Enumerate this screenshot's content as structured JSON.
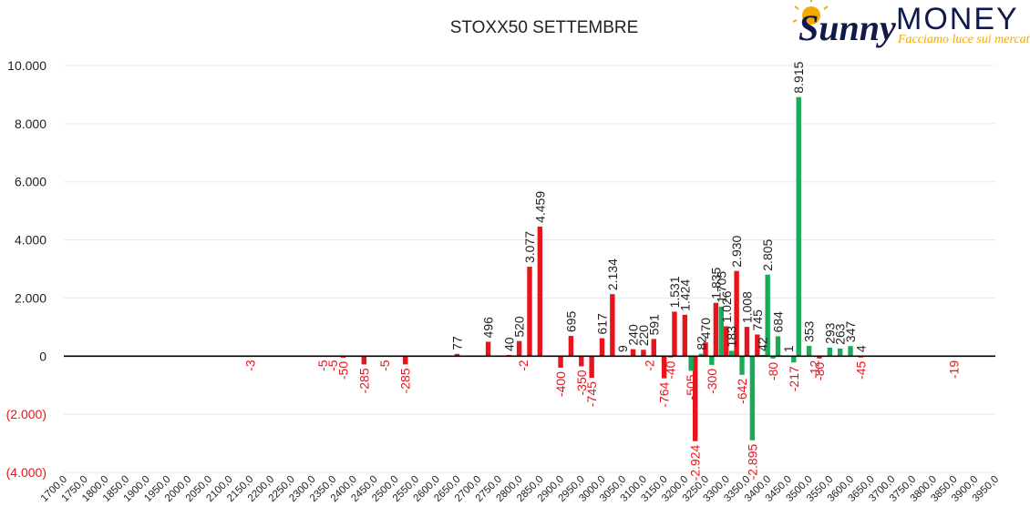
{
  "logo": {
    "word1": "Sunny",
    "word2": "MONEY",
    "tagline": "Facciamo luce sui mercati",
    "colors": {
      "sun": "#f5a800",
      "sunny": "#0f1a4a",
      "money": "#0f1a4a",
      "tagline": "#f5a800"
    }
  },
  "chart_data": {
    "type": "bar",
    "title": "STOXX50 SETTEMBRE",
    "xlabel": "",
    "ylabel": "",
    "ylim": [
      -4000,
      10000
    ],
    "yticks": [
      {
        "value": 10000,
        "label": "10.000"
      },
      {
        "value": 8000,
        "label": "8.000"
      },
      {
        "value": 6000,
        "label": "6.000"
      },
      {
        "value": 4000,
        "label": "4.000"
      },
      {
        "value": 2000,
        "label": "2.000"
      },
      {
        "value": 0,
        "label": "0"
      },
      {
        "value": -2000,
        "label": "(2.000)"
      },
      {
        "value": -4000,
        "label": "(4.000)"
      }
    ],
    "xticks": [
      "1700,0",
      "1750,0",
      "1800,0",
      "1850,0",
      "1900,0",
      "1950,0",
      "2000,0",
      "2050,0",
      "2100,0",
      "2150,0",
      "2200,0",
      "2250,0",
      "2300,0",
      "2350,0",
      "2400,0",
      "2450,0",
      "2500,0",
      "2550,0",
      "2600,0",
      "2650,0",
      "2700,0",
      "2750,0",
      "2800,0",
      "2850,0",
      "2900,0",
      "2950,0",
      "3000,0",
      "3050,0",
      "3100,0",
      "3150,0",
      "3200,0",
      "3250,0",
      "3300,0",
      "3350,0",
      "3400,0",
      "3450,0",
      "3500,0",
      "3550,0",
      "3600,0",
      "3650,0",
      "3700,0",
      "3750,0",
      "3800,0",
      "3850,0",
      "3900,0",
      "3950,0"
    ],
    "grid": true,
    "legend": "none",
    "colors": {
      "red": "#e8141c",
      "green": "#1aab5a",
      "axis": "#000000",
      "grid": "#e8e8e8",
      "negTick": "#e8141c",
      "posTick": "#222222"
    },
    "series": [
      {
        "color": "red",
        "points": [
          {
            "x": 2150,
            "y": -3,
            "label": "-3"
          },
          {
            "x": 2325,
            "y": -5,
            "label": "-5"
          },
          {
            "x": 2350,
            "y": -5,
            "label": "-5"
          },
          {
            "x": 2375,
            "y": -50,
            "label": "-50"
          },
          {
            "x": 2425,
            "y": -285,
            "label": "-285"
          },
          {
            "x": 2475,
            "y": -5,
            "label": "-5"
          },
          {
            "x": 2525,
            "y": -285,
            "label": "-285"
          },
          {
            "x": 2650,
            "y": 77,
            "label": "77"
          },
          {
            "x": 2725,
            "y": 496,
            "label": "496"
          },
          {
            "x": 2775,
            "y": 40,
            "label": "40"
          },
          {
            "x": 2800,
            "y": 520,
            "label": "520"
          },
          {
            "x": 2810,
            "y": -2,
            "label": "-2"
          },
          {
            "x": 2825,
            "y": 3077,
            "label": "3.077"
          },
          {
            "x": 2850,
            "y": 4459,
            "label": "4.459"
          },
          {
            "x": 2900,
            "y": -400,
            "label": "-400"
          },
          {
            "x": 2925,
            "y": 695,
            "label": "695"
          },
          {
            "x": 2950,
            "y": -350,
            "label": "-350"
          },
          {
            "x": 2975,
            "y": -745,
            "label": "-745"
          },
          {
            "x": 3000,
            "y": 617,
            "label": "617"
          },
          {
            "x": 3025,
            "y": 2134,
            "label": "2.134"
          },
          {
            "x": 3050,
            "y": 9,
            "label": "9"
          },
          {
            "x": 3075,
            "y": 240,
            "label": "240"
          },
          {
            "x": 3100,
            "y": 220,
            "label": "220"
          },
          {
            "x": 3115,
            "y": -2,
            "label": "-2"
          },
          {
            "x": 3125,
            "y": 591,
            "label": "591"
          },
          {
            "x": 3150,
            "y": -764,
            "label": "-764"
          },
          {
            "x": 3165,
            "y": -40,
            "label": "-40"
          },
          {
            "x": 3175,
            "y": 1531,
            "label": "1.531"
          },
          {
            "x": 3200,
            "y": 1424,
            "label": "1.424"
          },
          {
            "x": 3225,
            "y": -2924,
            "label": "-2.924"
          },
          {
            "x": 3250,
            "y": 470,
            "label": "470"
          },
          {
            "x": 3275,
            "y": 1835,
            "label": "1.835"
          },
          {
            "x": 3300,
            "y": 1026,
            "label": "1.026"
          },
          {
            "x": 3325,
            "y": 2930,
            "label": "2.930"
          },
          {
            "x": 3350,
            "y": 1008,
            "label": "1.008"
          },
          {
            "x": 3375,
            "y": 745,
            "label": "745"
          },
          {
            "x": 3525,
            "y": -80,
            "label": "-80"
          },
          {
            "x": 3625,
            "y": -45,
            "label": "-45"
          },
          {
            "x": 3850,
            "y": -19,
            "label": "-19"
          }
        ]
      },
      {
        "color": "green",
        "points": [
          {
            "x": 3215,
            "y": -505,
            "label": "-505"
          },
          {
            "x": 3240,
            "y": 82,
            "label": "82"
          },
          {
            "x": 3265,
            "y": -300,
            "label": "-300"
          },
          {
            "x": 3288,
            "y": 1705,
            "label": "1.705"
          },
          {
            "x": 3313,
            "y": 183,
            "label": "183"
          },
          {
            "x": 3338,
            "y": -642,
            "label": "-642"
          },
          {
            "x": 3363,
            "y": -2895,
            "label": "-2.895"
          },
          {
            "x": 3388,
            "y": 42,
            "label": "42"
          },
          {
            "x": 3400,
            "y": 2805,
            "label": "2.805"
          },
          {
            "x": 3413,
            "y": -80,
            "label": "-80"
          },
          {
            "x": 3425,
            "y": 684,
            "label": "684"
          },
          {
            "x": 3450,
            "y": 1,
            "label": "1"
          },
          {
            "x": 3463,
            "y": -217,
            "label": "-217"
          },
          {
            "x": 3475,
            "y": 8915,
            "label": "8.915"
          },
          {
            "x": 3500,
            "y": 353,
            "label": "353"
          },
          {
            "x": 3513,
            "y": -12,
            "label": "-12"
          },
          {
            "x": 3550,
            "y": 293,
            "label": "293"
          },
          {
            "x": 3575,
            "y": 263,
            "label": "263"
          },
          {
            "x": 3600,
            "y": 347,
            "label": "347"
          },
          {
            "x": 3625,
            "y": 4,
            "label": "4"
          }
        ]
      }
    ]
  }
}
